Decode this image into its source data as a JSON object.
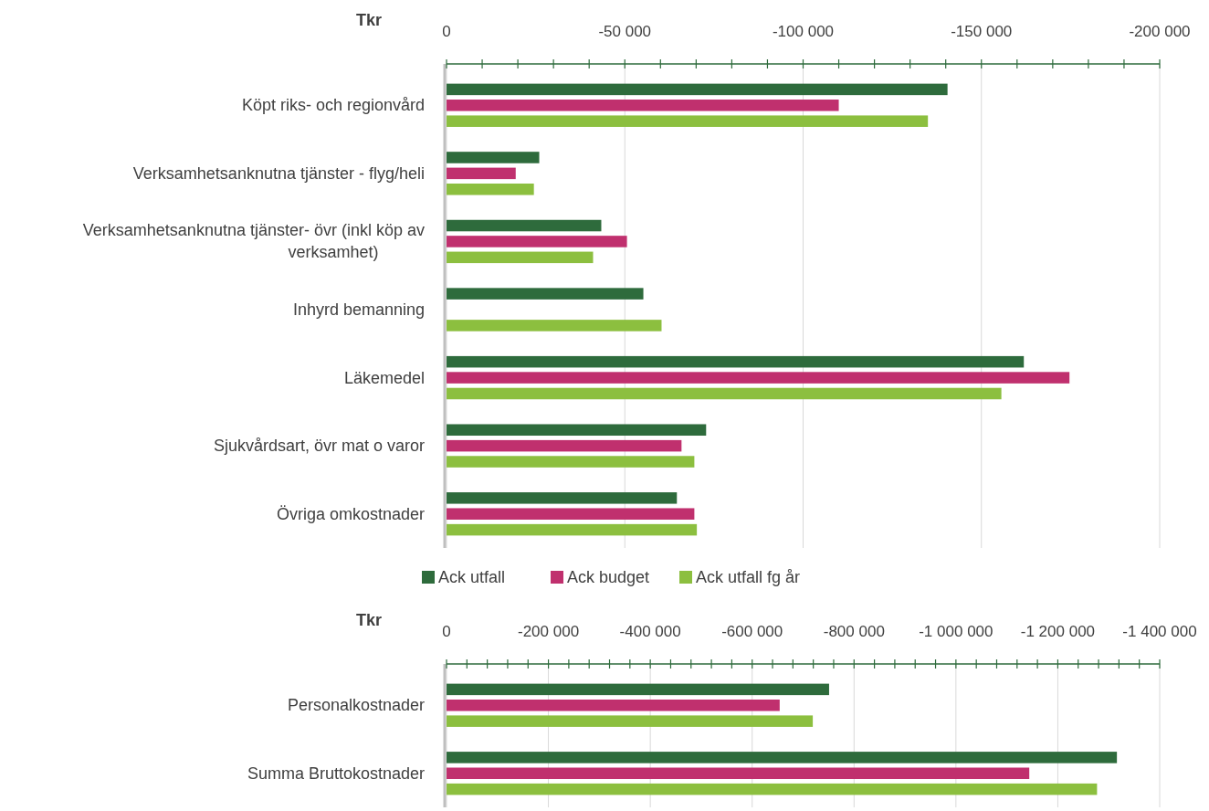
{
  "chart_data": [
    {
      "type": "bar",
      "orientation": "horizontal",
      "title": "Tkr",
      "categories": [
        "Köpt riks- och regionvård",
        "Verksamhetsanknutna tjänster - flyg/heli",
        "Verksamhetsanknutna tjänster- övr (inkl köp av verksamhet)",
        "Inhyrd bemanning",
        "Läkemedel",
        "Sjukvårdsart, övr mat o varor",
        "Övriga omkostnader"
      ],
      "series": [
        {
          "name": "Ack utfall",
          "color": "#2e6b3c",
          "values": [
            -140500,
            -26000,
            -43400,
            -55200,
            -161900,
            -72800,
            -64600
          ]
        },
        {
          "name": "Ack budget",
          "color": "#c0306e",
          "values": [
            -110000,
            -19400,
            -50600,
            null,
            -174700,
            -65900,
            -69500
          ]
        },
        {
          "name": "Ack utfall fg år",
          "color": "#8cbf3f",
          "values": [
            -135000,
            -24500,
            -41100,
            -60300,
            -155600,
            -69500,
            -70200
          ]
        }
      ],
      "xlim": [
        0,
        -200000
      ],
      "xticks": [
        0,
        {
          "value": -10000,
          "label": null
        },
        {
          "value": -20000,
          "label": null
        },
        {
          "value": -30000,
          "label": null
        },
        {
          "value": -40000,
          "label": null
        },
        {
          "value": -50000,
          "label": "-50 000"
        },
        {
          "value": -60000,
          "label": null
        },
        {
          "value": -70000,
          "label": null
        },
        {
          "value": -80000,
          "label": null
        },
        {
          "value": -90000,
          "label": null
        },
        {
          "value": -100000,
          "label": "-100 000"
        },
        {
          "value": -110000,
          "label": null
        },
        {
          "value": -120000,
          "label": null
        },
        {
          "value": -130000,
          "label": null
        },
        {
          "value": -140000,
          "label": null
        },
        {
          "value": -150000,
          "label": "-150 000"
        },
        {
          "value": -160000,
          "label": null
        },
        {
          "value": -170000,
          "label": null
        },
        {
          "value": -180000,
          "label": null
        },
        {
          "value": -190000,
          "label": null
        },
        {
          "value": -200000,
          "label": "-200 000"
        }
      ],
      "grid": true,
      "legend": "bottom"
    },
    {
      "type": "bar",
      "orientation": "horizontal",
      "title": "Tkr",
      "categories": [
        "Personalkostnader",
        "Summa  Bruttokostnader"
      ],
      "series": [
        {
          "color": "#2e6b3c",
          "values": [
            -751000,
            -1316000
          ]
        },
        {
          "color": "#c0306e",
          "values": [
            -654000,
            -1144000
          ]
        },
        {
          "color": "#8cbf3f",
          "values": [
            -719000,
            -1277000
          ]
        }
      ],
      "xlim": [
        0,
        -1400000
      ],
      "xticks": [
        0,
        {
          "value": -40000,
          "label": null
        },
        {
          "value": -80000,
          "label": null
        },
        {
          "value": -120000,
          "label": null
        },
        {
          "value": -160000,
          "label": null
        },
        {
          "value": -200000,
          "label": "-200 000"
        },
        {
          "value": -240000,
          "label": null
        },
        {
          "value": -280000,
          "label": null
        },
        {
          "value": -320000,
          "label": null
        },
        {
          "value": -360000,
          "label": null
        },
        {
          "value": -400000,
          "label": "-400 000"
        },
        {
          "value": -440000,
          "label": null
        },
        {
          "value": -480000,
          "label": null
        },
        {
          "value": -520000,
          "label": null
        },
        {
          "value": -560000,
          "label": null
        },
        {
          "value": -600000,
          "label": "-600 000"
        },
        {
          "value": -640000,
          "label": null
        },
        {
          "value": -680000,
          "label": null
        },
        {
          "value": -720000,
          "label": null
        },
        {
          "value": -760000,
          "label": null
        },
        {
          "value": -800000,
          "label": "-800 000"
        },
        {
          "value": -840000,
          "label": null
        },
        {
          "value": -880000,
          "label": null
        },
        {
          "value": -920000,
          "label": null
        },
        {
          "value": -960000,
          "label": null
        },
        {
          "value": -1000000,
          "label": "-1 000 000"
        },
        {
          "value": -1040000,
          "label": null
        },
        {
          "value": -1080000,
          "label": null
        },
        {
          "value": -1120000,
          "label": null
        },
        {
          "value": -1160000,
          "label": null
        },
        {
          "value": -1200000,
          "label": "-1 200 000"
        },
        {
          "value": -1240000,
          "label": null
        },
        {
          "value": -1280000,
          "label": null
        },
        {
          "value": -1320000,
          "label": null
        },
        {
          "value": -1360000,
          "label": null
        },
        {
          "value": -1400000,
          "label": "-1 400 000"
        }
      ],
      "grid": true
    }
  ]
}
